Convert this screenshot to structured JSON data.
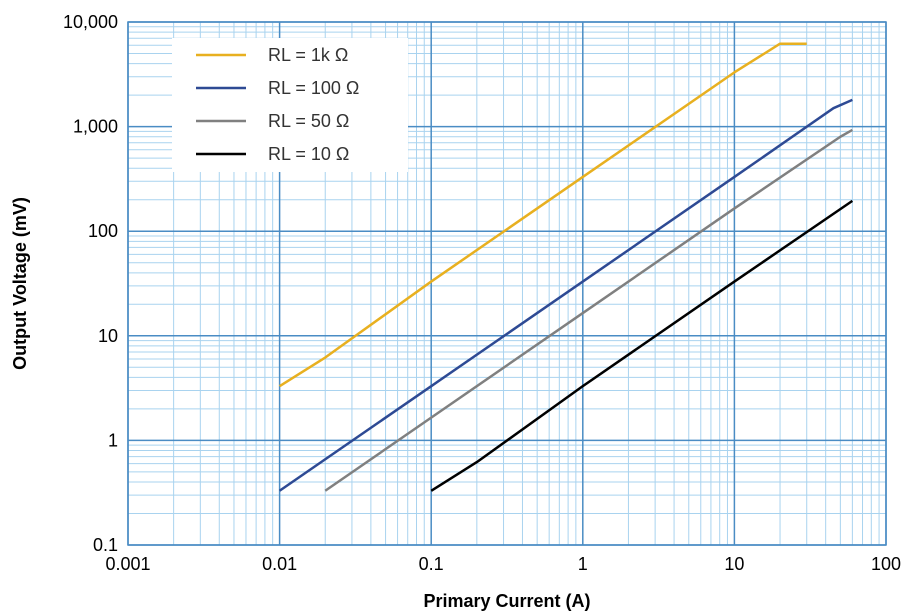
{
  "chart_data": {
    "type": "line",
    "title": "",
    "xlabel": "Primary Current (A)",
    "ylabel": "Output Voltage (mV)",
    "xscale": "log",
    "yscale": "log",
    "xlim": [
      0.001,
      100
    ],
    "ylim": [
      0.1,
      10000
    ],
    "x_ticks": [
      "0.001",
      "0.01",
      "0.1",
      "1",
      "10",
      "100"
    ],
    "y_ticks": [
      "0.1",
      "1",
      "10",
      "100",
      "1,000",
      "10,000"
    ],
    "grid": true,
    "legend_position": "top-left",
    "colors": {
      "grid_major": "#4a8cc4",
      "grid_minor": "#a9d3ef"
    },
    "series": [
      {
        "name": "RL = 1k Ω",
        "color": "#e8b020",
        "points": [
          [
            0.01,
            3.3
          ],
          [
            0.02,
            6.2
          ],
          [
            0.1,
            33
          ],
          [
            1,
            330
          ],
          [
            10,
            3300
          ],
          [
            20,
            6200
          ],
          [
            30,
            6200
          ]
        ]
      },
      {
        "name": "RL = 100 Ω",
        "color": "#2e4a94",
        "points": [
          [
            0.01,
            0.33
          ],
          [
            0.1,
            3.3
          ],
          [
            1,
            33
          ],
          [
            10,
            330
          ],
          [
            45,
            1500
          ],
          [
            60,
            1800
          ]
        ]
      },
      {
        "name": "RL = 50 Ω",
        "color": "#808080",
        "points": [
          [
            0.02,
            0.33
          ],
          [
            0.1,
            1.65
          ],
          [
            1,
            16.5
          ],
          [
            10,
            165
          ],
          [
            50,
            800
          ],
          [
            60,
            930
          ]
        ]
      },
      {
        "name": "RL = 10 Ω",
        "color": "#000000",
        "points": [
          [
            0.1,
            0.33
          ],
          [
            0.2,
            0.62
          ],
          [
            1,
            3.3
          ],
          [
            10,
            33
          ],
          [
            60,
            195
          ]
        ]
      }
    ]
  }
}
